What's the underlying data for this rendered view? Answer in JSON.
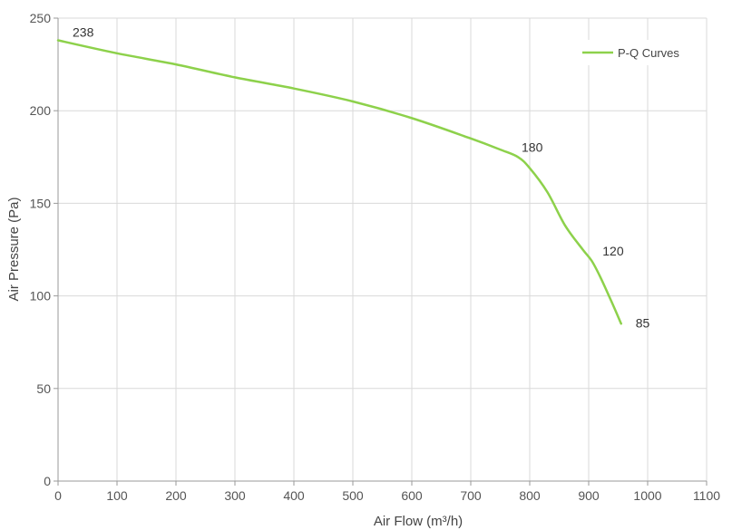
{
  "chart_data": {
    "type": "line",
    "xlabel": "Air Flow  (m³/h)",
    "ylabel": "Air Pressure  (Pa)",
    "xlim": [
      0,
      1100
    ],
    "ylim": [
      0,
      250
    ],
    "x_ticks": [
      0,
      100,
      200,
      300,
      400,
      500,
      600,
      700,
      800,
      900,
      1000,
      1100
    ],
    "y_ticks": [
      0,
      50,
      100,
      150,
      200,
      250
    ],
    "grid": true,
    "legend_position": "top-right",
    "series": [
      {
        "name": "P-Q Curves",
        "color": "#8DD14B",
        "x": [
          0,
          100,
          200,
          300,
          400,
          500,
          600,
          700,
          750,
          780,
          800,
          830,
          860,
          890,
          905,
          920,
          940,
          955
        ],
        "y": [
          238,
          231,
          225,
          218,
          212,
          205,
          196,
          185,
          179,
          175,
          169,
          156,
          138,
          125,
          119,
          110,
          96,
          85
        ]
      }
    ],
    "data_labels": [
      {
        "x": 0,
        "y": 238,
        "text": "238"
      },
      {
        "x": 780,
        "y": 175,
        "text": "180"
      },
      {
        "x": 905,
        "y": 119,
        "text": "120"
      },
      {
        "x": 955,
        "y": 85,
        "text": "85"
      }
    ]
  }
}
